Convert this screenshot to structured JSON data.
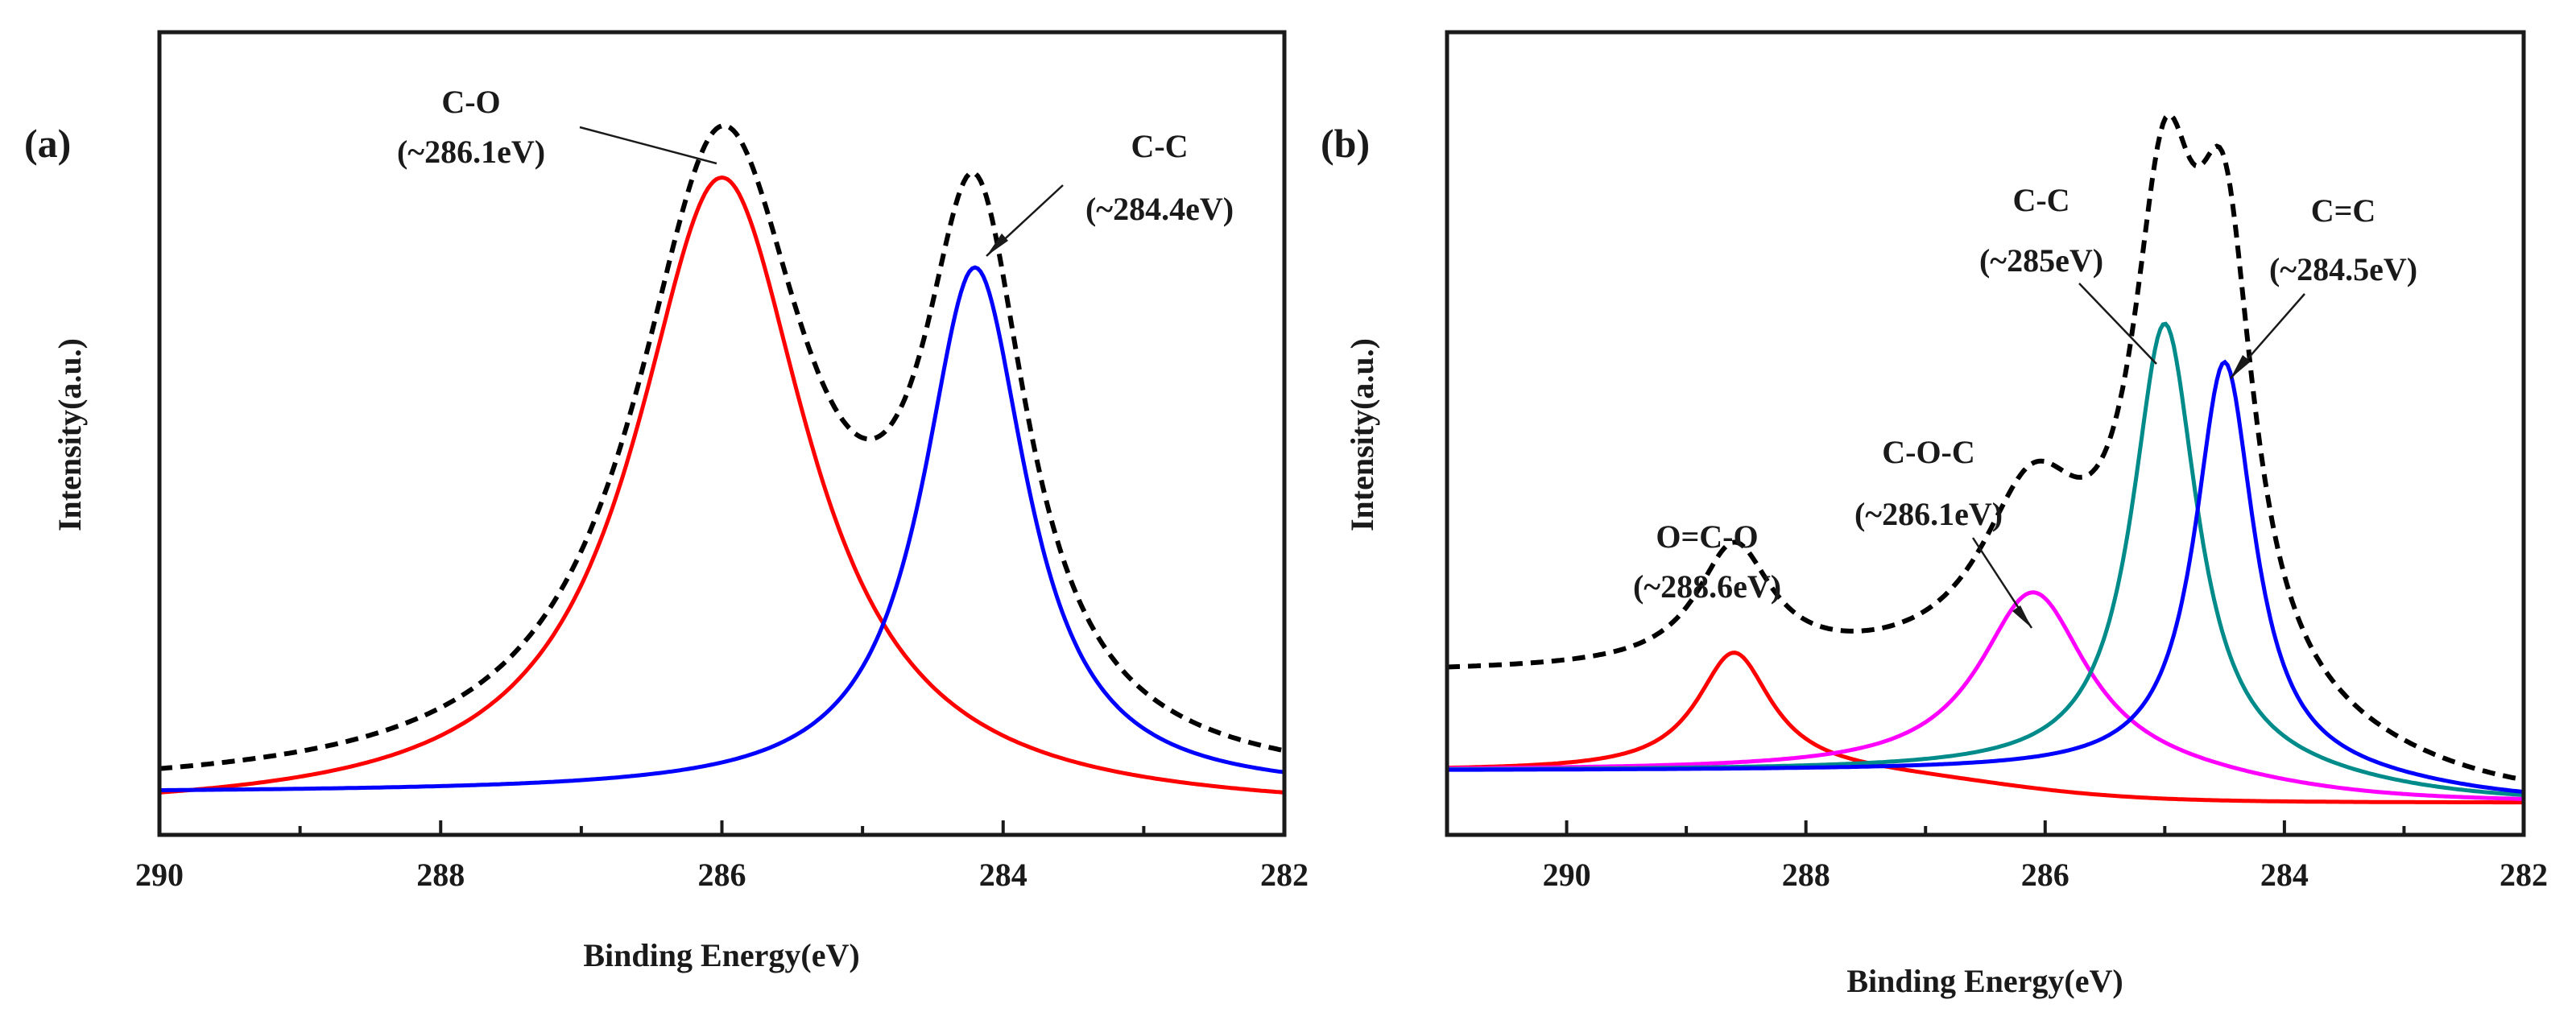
{
  "chart_data": [
    {
      "type": "line",
      "panel_label": "(a)",
      "xlabel": "Binding Energy(eV)",
      "ylabel": "Intensity(a.u.)",
      "xlim": [
        290,
        282
      ],
      "ylim": [
        -0.03,
        1.13
      ],
      "x_reversed": true,
      "xticks": [
        290,
        288,
        286,
        284,
        282
      ],
      "xtick_labels": [
        "290",
        "288",
        "286",
        "284",
        "282"
      ],
      "y_tick_labels_shown": false,
      "grid": false,
      "series": [
        {
          "name": "C-O fit",
          "color": "#ff0000",
          "style": "solid",
          "peaks": [
            {
              "center": 286.0,
              "height": 0.92,
              "width": 0.75,
              "shape": "lorentzian"
            }
          ],
          "baseline": 0.0
        },
        {
          "name": "C-C fit",
          "color": "#0000ff",
          "style": "solid",
          "peaks": [
            {
              "center": 284.2,
              "height": 0.76,
              "width": 0.45,
              "shape": "lorentzian"
            }
          ],
          "baseline": 0.03
        },
        {
          "name": "Envelope",
          "color": "#000000",
          "style": "dashed",
          "sum_of": [
            0,
            1
          ]
        }
      ],
      "annotations": [
        {
          "line1": "C-O",
          "line2": "(~286.1eV)",
          "point": [
            286.0,
            0.95
          ]
        },
        {
          "line1": "C-C",
          "line2": "(~284.4eV)",
          "point": [
            284.15,
            0.8
          ]
        }
      ]
    },
    {
      "type": "line",
      "panel_label": "(b)",
      "xlabel": "Binding Energy(eV)",
      "ylabel": "Intensity(a.u.)",
      "xlim": [
        291,
        282
      ],
      "ylim": [
        -0.05,
        1.2
      ],
      "x_reversed": true,
      "xticks": [
        290,
        288,
        286,
        284,
        282
      ],
      "xtick_labels": [
        "290",
        "288",
        "286",
        "284",
        "282"
      ],
      "y_tick_labels_shown": false,
      "grid": false,
      "series": [
        {
          "name": "O=C-O fit",
          "color": "#ff0000",
          "style": "solid",
          "peaks": [
            {
              "center": 288.6,
              "height": 0.185,
              "width": 0.38,
              "shape": "lorentzian"
            }
          ],
          "baseline_step": [
            0.05,
            0.0,
            286.4
          ]
        },
        {
          "name": "C-O-C fit",
          "color": "#ff00ff",
          "style": "solid",
          "peaks": [
            {
              "center": 286.1,
              "height": 0.28,
              "width": 0.55,
              "shape": "lorentzian"
            }
          ],
          "baseline_step": [
            0.05,
            0.0,
            284.3
          ]
        },
        {
          "name": "C-C fit",
          "color": "#008b8b",
          "style": "solid",
          "peaks": [
            {
              "center": 285.0,
              "height": 0.7,
              "width": 0.33,
              "shape": "lorentzian"
            }
          ],
          "baseline_step": [
            0.05,
            0.0,
            283.5
          ]
        },
        {
          "name": "C=C fit",
          "color": "#0000ff",
          "style": "solid",
          "peaks": [
            {
              "center": 284.5,
              "height": 0.64,
              "width": 0.3,
              "shape": "lorentzian"
            }
          ],
          "baseline_step": [
            0.05,
            0.0,
            283.0
          ]
        },
        {
          "name": "Envelope",
          "color": "#000000",
          "style": "dashed",
          "sum_of": [
            0,
            1,
            2,
            3
          ]
        }
      ],
      "annotations": [
        {
          "line1": "O=C-O",
          "line2": "(~288.6eV)"
        },
        {
          "line1": "C-O-C",
          "line2": "(~286.1eV)",
          "point": [
            286.15,
            0.27
          ]
        },
        {
          "line1": "C-C",
          "line2": "(~285eV)",
          "point": [
            285.0,
            0.69
          ]
        },
        {
          "line1": "C=C",
          "line2": "(~284.5eV)",
          "point": [
            284.5,
            0.63
          ]
        }
      ]
    }
  ]
}
